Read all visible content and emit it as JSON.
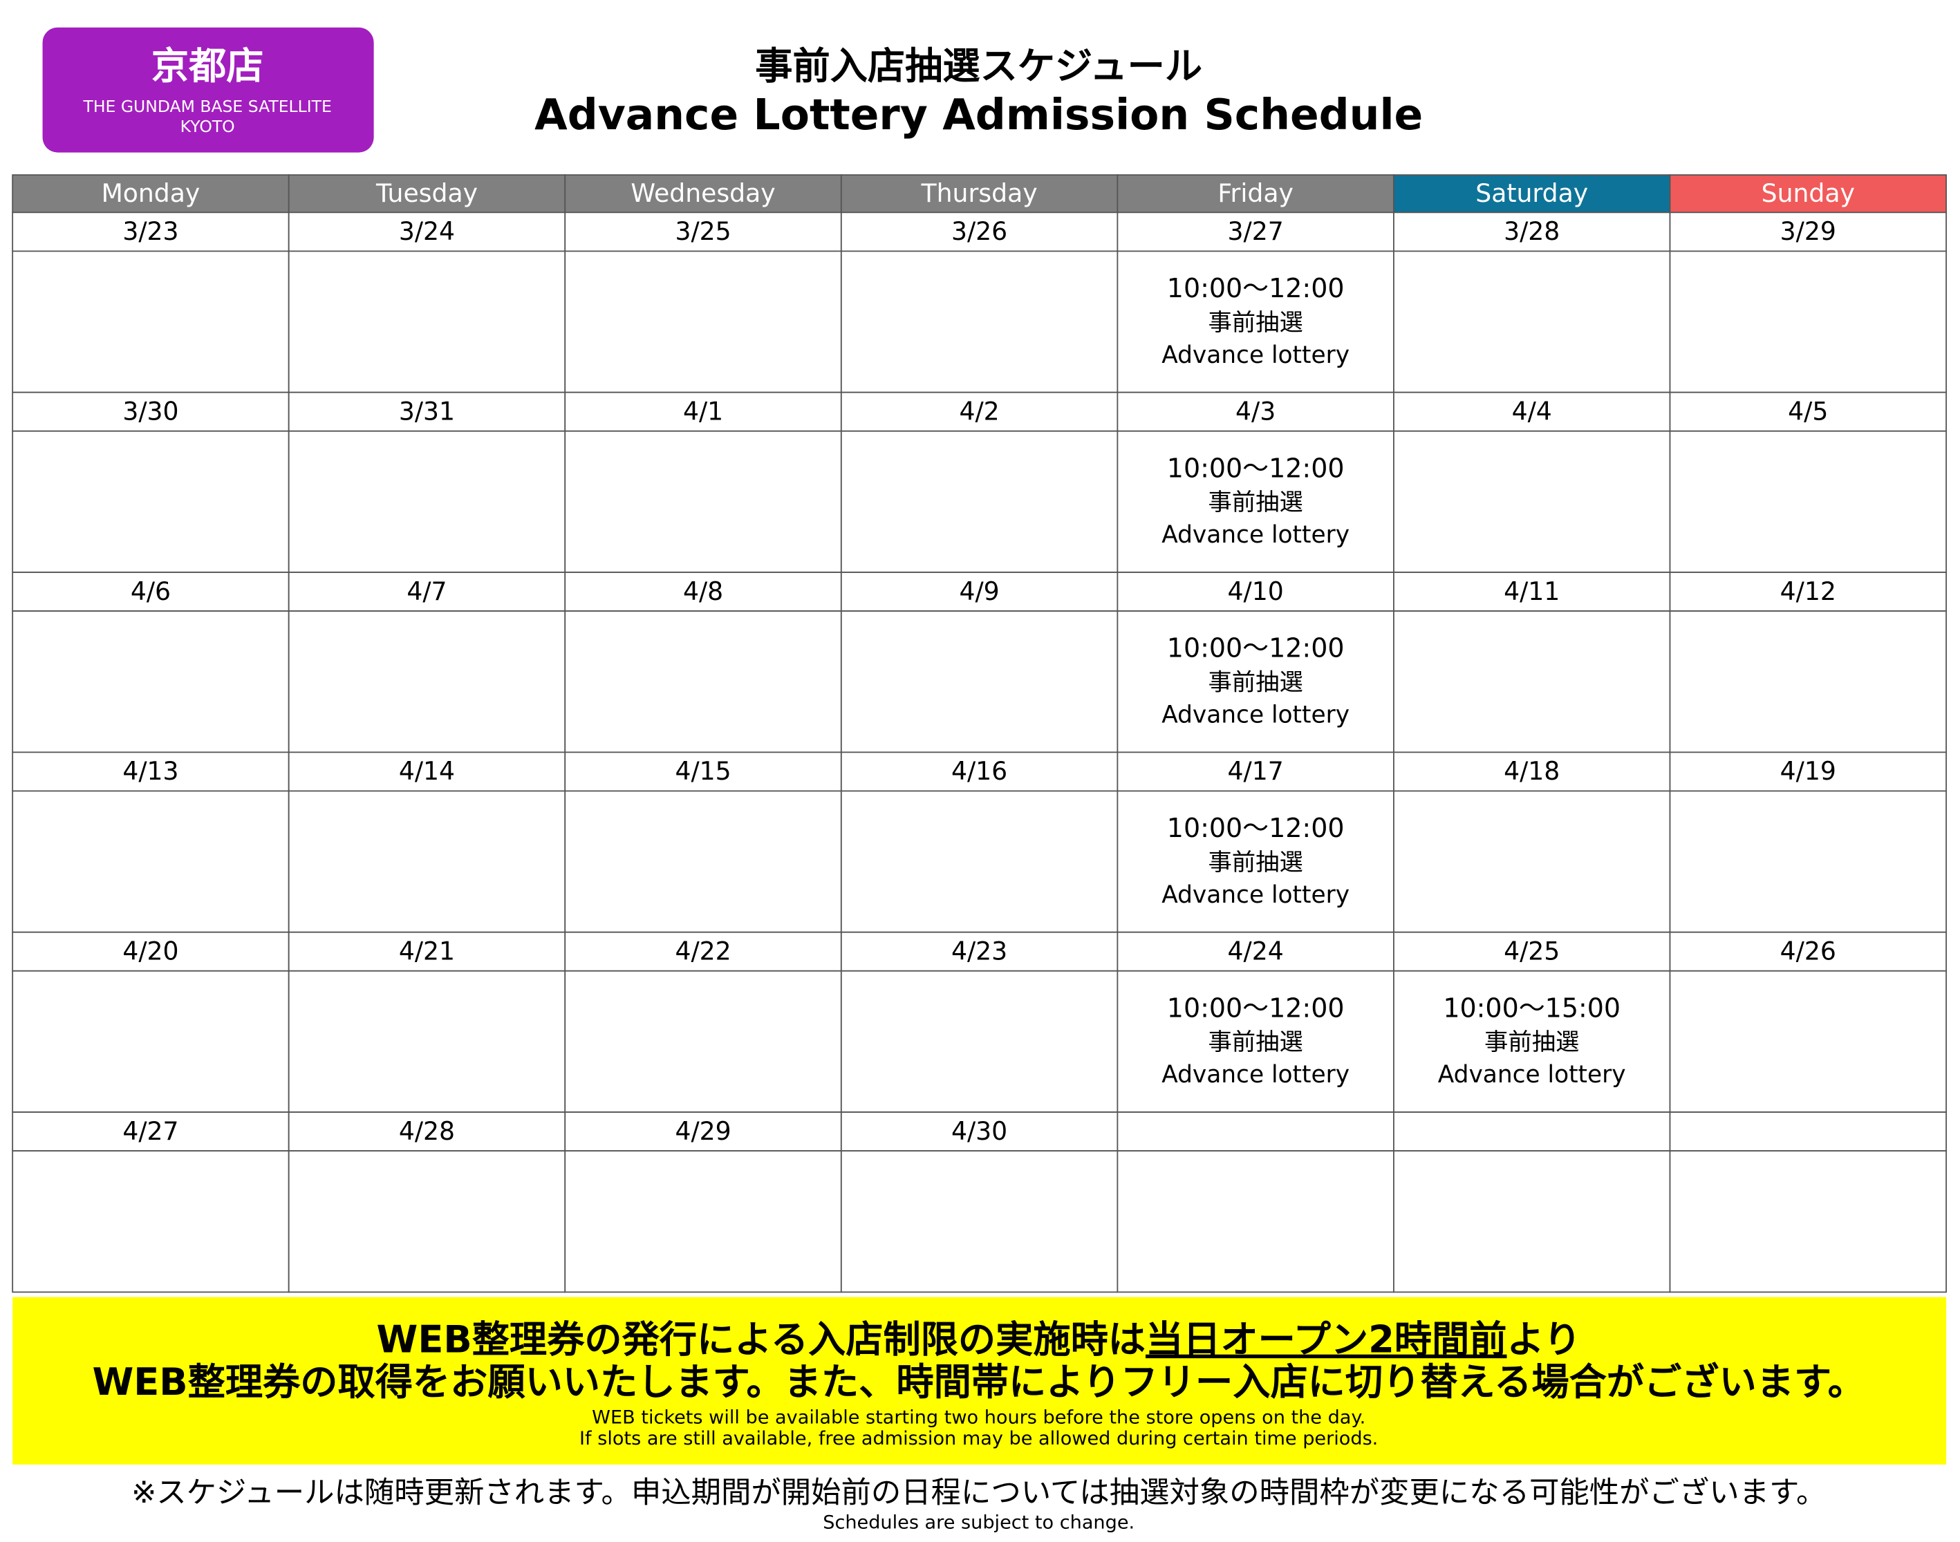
{
  "badge": {
    "title": "京都店",
    "subtitle_lines": [
      "THE GUNDAM BASE SATELLITE",
      "KYOTO"
    ]
  },
  "header": {
    "title_ja": "事前入店抽選スケジュール",
    "title_en": "Advance Lottery Admission Schedule"
  },
  "calendar": {
    "days": [
      "Monday",
      "Tuesday",
      "Wednesday",
      "Thursday",
      "Friday",
      "Saturday",
      "Sunday"
    ],
    "weeks": [
      {
        "dates": [
          "3/23",
          "3/24",
          "3/25",
          "3/26",
          "3/27",
          "3/28",
          "3/29"
        ],
        "events": [
          null,
          null,
          null,
          null,
          {
            "time": "10:00～12:00",
            "label_ja": "事前抽選",
            "label_en": "Advance lottery"
          },
          null,
          null
        ]
      },
      {
        "dates": [
          "3/30",
          "3/31",
          "4/1",
          "4/2",
          "4/3",
          "4/4",
          "4/5"
        ],
        "events": [
          null,
          null,
          null,
          null,
          {
            "time": "10:00～12:00",
            "label_ja": "事前抽選",
            "label_en": "Advance lottery"
          },
          null,
          null
        ]
      },
      {
        "dates": [
          "4/6",
          "4/7",
          "4/8",
          "4/9",
          "4/10",
          "4/11",
          "4/12"
        ],
        "events": [
          null,
          null,
          null,
          null,
          {
            "time": "10:00～12:00",
            "label_ja": "事前抽選",
            "label_en": "Advance lottery"
          },
          null,
          null
        ]
      },
      {
        "dates": [
          "4/13",
          "4/14",
          "4/15",
          "4/16",
          "4/17",
          "4/18",
          "4/19"
        ],
        "events": [
          null,
          null,
          null,
          null,
          {
            "time": "10:00～12:00",
            "label_ja": "事前抽選",
            "label_en": "Advance lottery"
          },
          null,
          null
        ]
      },
      {
        "dates": [
          "4/20",
          "4/21",
          "4/22",
          "4/23",
          "4/24",
          "4/25",
          "4/26"
        ],
        "events": [
          null,
          null,
          null,
          null,
          {
            "time": "10:00～12:00",
            "label_ja": "事前抽選",
            "label_en": "Advance lottery"
          },
          {
            "time": "10:00～15:00",
            "label_ja": "事前抽選",
            "label_en": "Advance lottery"
          },
          null
        ]
      },
      {
        "dates": [
          "4/27",
          "4/28",
          "4/29",
          "4/30",
          null,
          null,
          null
        ],
        "events": [
          null,
          null,
          null,
          null,
          null,
          null,
          null
        ]
      }
    ]
  },
  "notice": {
    "line1": [
      "WEB整理券の発行による入店制限の実施時は",
      "当日オープン2時間前",
      "より"
    ],
    "line2": "WEB整理券の取得をお願いいたします。また、時間帯によりフリー入店に切り替える場合がございます。",
    "lines_en": [
      "WEB tickets will be available starting two hours before the store opens on the day.",
      "If slots are still available, free admission may be allowed during certain time periods."
    ]
  },
  "footer": {
    "note_ja": "※スケジュールは随時更新されます。申込期間が開始前の日程については抽選対象の時間枠が変更になる可能性がございます。",
    "note_en": "Schedules are subject to change."
  }
}
